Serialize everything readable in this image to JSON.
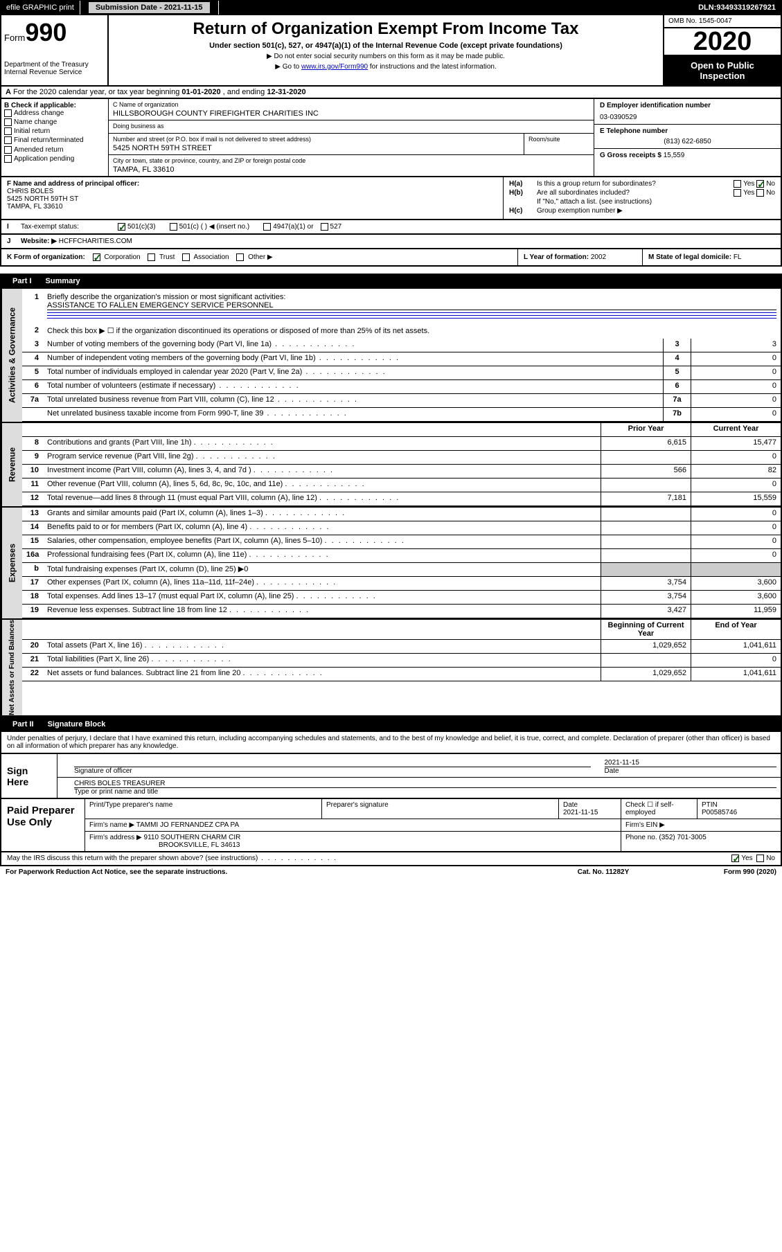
{
  "topbar": {
    "efile": "efile GRAPHIC print",
    "submission_label": "Submission Date - ",
    "submission_date": "2021-11-15",
    "dln_label": "DLN: ",
    "dln": "93493319267921"
  },
  "header": {
    "form_label": "Form",
    "form_number": "990",
    "dept1": "Department of the Treasury",
    "dept2": "Internal Revenue Service",
    "title": "Return of Organization Exempt From Income Tax",
    "subtitle": "Under section 501(c), 527, or 4947(a)(1) of the Internal Revenue Code (except private foundations)",
    "note1": "▶ Do not enter social security numbers on this form as it may be made public.",
    "note2_pre": "▶ Go to ",
    "note2_link": "www.irs.gov/Form990",
    "note2_post": " for instructions and the latest information.",
    "omb": "OMB No. 1545-0047",
    "year": "2020",
    "open": "Open to Public Inspection"
  },
  "line_a": {
    "text_pre": "For the 2020 calendar year, or tax year beginning ",
    "begin": "01-01-2020",
    "text_mid": " , and ending ",
    "end": "12-31-2020"
  },
  "section_b": {
    "label": "B Check if applicable:",
    "opts": [
      "Address change",
      "Name change",
      "Initial return",
      "Final return/terminated",
      "Amended return",
      "Application pending"
    ]
  },
  "section_c": {
    "name_label": "C Name of organization",
    "name": "HILLSBOROUGH COUNTY FIREFIGHTER CHARITIES INC",
    "dba_label": "Doing business as",
    "dba": "",
    "street_label": "Number and street (or P.O. box if mail is not delivered to street address)",
    "street": "5425 NORTH 59TH STREET",
    "room_label": "Room/suite",
    "city_label": "City or town, state or province, country, and ZIP or foreign postal code",
    "city": "TAMPA, FL  33610"
  },
  "section_d": {
    "label": "D Employer identification number",
    "value": "03-0390529"
  },
  "section_e": {
    "label": "E Telephone number",
    "value": "(813) 622-6850"
  },
  "section_g": {
    "label": "G Gross receipts $ ",
    "value": "15,559"
  },
  "section_f": {
    "label": "F  Name and address of principal officer:",
    "name": "CHRIS BOLES",
    "street": "5425 NORTH 59TH ST",
    "city": "TAMPA, FL  33610"
  },
  "section_h": {
    "a_label": "H(a)",
    "a_text": "Is this a group return for subordinates?",
    "b_label": "H(b)",
    "b_text": "Are all subordinates included?",
    "b_note": "If \"No,\" attach a list. (see instructions)",
    "c_label": "H(c)",
    "c_text": "Group exemption number ▶"
  },
  "line_i": {
    "label": "Tax-exempt status:",
    "opts": [
      "501(c)(3)",
      "501(c) (   ) ◀ (insert no.)",
      "4947(a)(1) or",
      "527"
    ]
  },
  "line_j": {
    "label": "Website: ▶",
    "value": " HCFFCHARITIES.COM"
  },
  "line_k": {
    "label": "K Form of organization:",
    "opts": [
      "Corporation",
      "Trust",
      "Association",
      "Other ▶"
    ],
    "l_label": "L Year of formation: ",
    "l_value": "2002",
    "m_label": "M State of legal domicile: ",
    "m_value": "FL"
  },
  "part1": {
    "header": "Part I",
    "title": "Summary"
  },
  "summary": {
    "q1_label": "Briefly describe the organization's mission or most significant activities:",
    "q1_value": "ASSISTANCE TO FALLEN EMERGENCY SERVICE PERSONNEL",
    "q2": "Check this box ▶ ☐  if the organization discontinued its operations or disposed of more than 25% of its net assets.",
    "rows_gov": [
      {
        "n": "3",
        "t": "Number of voting members of the governing body (Part VI, line 1a)",
        "box": "3",
        "v": "3"
      },
      {
        "n": "4",
        "t": "Number of independent voting members of the governing body (Part VI, line 1b)",
        "box": "4",
        "v": "0"
      },
      {
        "n": "5",
        "t": "Total number of individuals employed in calendar year 2020 (Part V, line 2a)",
        "box": "5",
        "v": "0"
      },
      {
        "n": "6",
        "t": "Total number of volunteers (estimate if necessary)",
        "box": "6",
        "v": "0"
      },
      {
        "n": "7a",
        "t": "Total unrelated business revenue from Part VIII, column (C), line 12",
        "box": "7a",
        "v": "0"
      },
      {
        "n": "",
        "t": "Net unrelated business taxable income from Form 990-T, line 39",
        "box": "7b",
        "v": "0"
      }
    ],
    "col_prior": "Prior Year",
    "col_current": "Current Year",
    "rows_rev": [
      {
        "n": "8",
        "t": "Contributions and grants (Part VIII, line 1h)",
        "p": "6,615",
        "c": "15,477"
      },
      {
        "n": "9",
        "t": "Program service revenue (Part VIII, line 2g)",
        "p": "",
        "c": "0"
      },
      {
        "n": "10",
        "t": "Investment income (Part VIII, column (A), lines 3, 4, and 7d )",
        "p": "566",
        "c": "82"
      },
      {
        "n": "11",
        "t": "Other revenue (Part VIII, column (A), lines 5, 6d, 8c, 9c, 10c, and 11e)",
        "p": "",
        "c": "0"
      },
      {
        "n": "12",
        "t": "Total revenue—add lines 8 through 11 (must equal Part VIII, column (A), line 12)",
        "p": "7,181",
        "c": "15,559"
      }
    ],
    "rows_exp": [
      {
        "n": "13",
        "t": "Grants and similar amounts paid (Part IX, column (A), lines 1–3)",
        "p": "",
        "c": "0"
      },
      {
        "n": "14",
        "t": "Benefits paid to or for members (Part IX, column (A), line 4)",
        "p": "",
        "c": "0"
      },
      {
        "n": "15",
        "t": "Salaries, other compensation, employee benefits (Part IX, column (A), lines 5–10)",
        "p": "",
        "c": "0"
      },
      {
        "n": "16a",
        "t": "Professional fundraising fees (Part IX, column (A), line 11e)",
        "p": "",
        "c": "0"
      },
      {
        "n": "b",
        "t": "Total fundraising expenses (Part IX, column (D), line 25) ▶0",
        "p": "SHADE",
        "c": "SHADE"
      },
      {
        "n": "17",
        "t": "Other expenses (Part IX, column (A), lines 11a–11d, 11f–24e)",
        "p": "3,754",
        "c": "3,600"
      },
      {
        "n": "18",
        "t": "Total expenses. Add lines 13–17 (must equal Part IX, column (A), line 25)",
        "p": "3,754",
        "c": "3,600"
      },
      {
        "n": "19",
        "t": "Revenue less expenses. Subtract line 18 from line 12",
        "p": "3,427",
        "c": "11,959"
      }
    ],
    "col_begin": "Beginning of Current Year",
    "col_end": "End of Year",
    "rows_net": [
      {
        "n": "20",
        "t": "Total assets (Part X, line 16)",
        "p": "1,029,652",
        "c": "1,041,611"
      },
      {
        "n": "21",
        "t": "Total liabilities (Part X, line 26)",
        "p": "",
        "c": "0"
      },
      {
        "n": "22",
        "t": "Net assets or fund balances. Subtract line 21 from line 20",
        "p": "1,029,652",
        "c": "1,041,611"
      }
    ]
  },
  "vtabs": {
    "gov": "Activities & Governance",
    "rev": "Revenue",
    "exp": "Expenses",
    "net": "Net Assets or Fund Balances"
  },
  "part2": {
    "header": "Part II",
    "title": "Signature Block"
  },
  "perjury": "Under penalties of perjury, I declare that I have examined this return, including accompanying schedules and statements, and to the best of my knowledge and belief, it is true, correct, and complete. Declaration of preparer (other than officer) is based on all information of which preparer has any knowledge.",
  "sign": {
    "label": "Sign Here",
    "sig_label": "Signature of officer",
    "date_label": "Date",
    "date": "2021-11-15",
    "name": "CHRIS BOLES  TREASURER",
    "name_label": "Type or print name and title"
  },
  "prep": {
    "label": "Paid Preparer Use Only",
    "r1": {
      "c1_label": "Print/Type preparer's name",
      "c1": "",
      "c2_label": "Preparer's signature",
      "c2": "",
      "c3_label": "Date",
      "c3": "2021-11-15",
      "c4_label": "Check ☐ if self-employed",
      "c5_label": "PTIN",
      "c5": "P00585746"
    },
    "r2": {
      "label": "Firm's name    ▶ ",
      "value": "TAMMI JO FERNANDEZ CPA PA",
      "ein_label": "Firm's EIN ▶"
    },
    "r3": {
      "label": "Firm's address ▶ ",
      "line1": "9110 SOUTHERN CHARM CIR",
      "line2": "BROOKSVILLE, FL  34613",
      "phone_label": "Phone no. ",
      "phone": "(352) 701-3005"
    }
  },
  "footer": {
    "irs_q": "May the IRS discuss this return with the preparer shown above? (see instructions)",
    "paperwork": "For Paperwork Reduction Act Notice, see the separate instructions.",
    "catno": "Cat. No. 11282Y",
    "formref": "Form 990 (2020)"
  }
}
